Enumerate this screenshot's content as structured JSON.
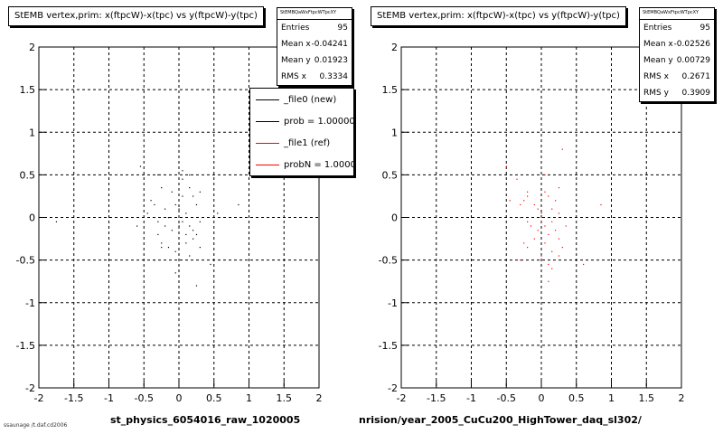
{
  "panels": [
    {
      "title": "StEMB  vertex,prim: x(ftpcW)-x(tpc) vs y(ftpcW)-y(tpc)",
      "stats": {
        "header": "StEMBQaWxFtpcWTpcXY",
        "rows": [
          {
            "label": "Entries",
            "value": "95"
          },
          {
            "label": "Mean x",
            "value": "-0.04241"
          },
          {
            "label": "Mean y",
            "value": "0.01923"
          },
          {
            "label": "RMS x",
            "value": "0.3334"
          }
        ]
      },
      "legend": [
        {
          "label": "_file0 (new)",
          "color": "#000000"
        },
        {
          "label": "prob = 1.000000",
          "color": "#000000"
        },
        {
          "label": "_file1 (ref)",
          "color": "#ff0000"
        },
        {
          "label": "probN = 1.000000",
          "color": "#ff0000"
        }
      ],
      "xlabel": "st_physics_6054016_raw_1020005"
    },
    {
      "title": "StEMB  vertex,prim: x(ftpcW)-x(tpc) vs y(ftpcW)-y(tpc)",
      "stats": {
        "header": "StEMBQaWxFtpcWTpcXY",
        "rows": [
          {
            "label": "Entries",
            "value": "95"
          },
          {
            "label": "Mean x",
            "value": "-0.02526"
          },
          {
            "label": "Mean y",
            "value": "0.00729"
          },
          {
            "label": "RMS x",
            "value": "0.2671"
          },
          {
            "label": "RMS y",
            "value": "0.3909"
          }
        ]
      },
      "xlabel": "nrision/year_2005_CuCu200_HighTower_daq_sl302/"
    }
  ],
  "footer_note": "ssaunage /t.daf.cd2006",
  "chart_data": [
    {
      "type": "scatter",
      "title": "StEMB  vertex,prim: x(ftpcW)-x(tpc) vs y(ftpcW)-y(tpc)",
      "xlabel": "st_physics_6054016_raw_1020005",
      "ylabel": "",
      "xlim": [
        -2,
        2
      ],
      "ylim": [
        -2,
        2
      ],
      "xticks": [
        "-2",
        "-1.5",
        "-1",
        "-0.5",
        "0",
        "0.5",
        "1",
        "1.5",
        "2"
      ],
      "yticks": [
        "2",
        "1.5",
        "1",
        "0.5",
        "0",
        "-0.5",
        "-1",
        "-1.5",
        "-2"
      ],
      "grid": true,
      "color": "#000000",
      "x": [
        -0.55,
        -0.3,
        -0.4,
        -0.35,
        -0.25,
        -0.2,
        -0.1,
        -0.05,
        0.0,
        0.05,
        0.1,
        0.15,
        0.2,
        0.25,
        0.3,
        -0.3,
        -0.2,
        -0.15,
        -0.1,
        0.0,
        0.05,
        0.1,
        0.15,
        0.2,
        -0.3,
        -0.25,
        0.1,
        0.2,
        0.3,
        0.25,
        -0.05,
        0.0,
        0.15,
        -0.25,
        0.3,
        0.05,
        0.15,
        0.55,
        0.85,
        -0.6,
        -1.75,
        -0.35,
        -0.05,
        0.25,
        0.45,
        0.05,
        -0.45,
        -0.15
      ],
      "y": [
        0.6,
        0.5,
        0.2,
        0.15,
        0.35,
        0.1,
        0.3,
        0.15,
        0.1,
        0.25,
        0.05,
        0.35,
        0.25,
        0.15,
        0.3,
        -0.05,
        -0.1,
        0.0,
        -0.15,
        -0.1,
        -0.05,
        -0.2,
        -0.1,
        -0.15,
        -0.2,
        -0.3,
        -0.3,
        -0.25,
        -0.35,
        -0.2,
        -0.4,
        -0.3,
        -0.45,
        -0.35,
        -0.05,
        0.45,
        0.5,
        0.05,
        0.15,
        -0.1,
        -0.05,
        -0.5,
        -0.65,
        -0.8,
        -0.55,
        0.55,
        0.05,
        -0.35
      ]
    },
    {
      "type": "scatter",
      "title": "StEMB  vertex,prim: x(ftpcW)-x(tpc) vs y(ftpcW)-y(tpc)",
      "xlabel": "nrision/year_2005_CuCu200_HighTower_daq_sl302/",
      "ylabel": "",
      "xlim": [
        -2,
        2
      ],
      "ylim": [
        -2,
        2
      ],
      "xticks": [
        "-2",
        "-1.5",
        "-1",
        "-0.5",
        "0",
        "0.5",
        "1",
        "1.5",
        "2"
      ],
      "yticks": [
        "2",
        "1.5",
        "1",
        "0.5",
        "0",
        "-0.5",
        "-1",
        "-1.5",
        "-2"
      ],
      "grid": true,
      "color": "#ff0000",
      "x": [
        -0.5,
        -0.35,
        -0.3,
        -0.25,
        -0.2,
        -0.1,
        -0.05,
        0.0,
        0.05,
        0.1,
        0.15,
        0.2,
        0.25,
        0.3,
        -0.3,
        -0.2,
        -0.15,
        -0.05,
        0.0,
        0.05,
        0.1,
        0.15,
        0.2,
        0.25,
        -0.25,
        -0.2,
        0.05,
        0.15,
        0.25,
        0.1,
        -0.1,
        0.0,
        0.1,
        0.3,
        0.6,
        0.85,
        -0.45,
        0.25,
        0.05,
        -0.3,
        0.15,
        -0.2,
        0.35
      ],
      "y": [
        0.6,
        0.45,
        0.15,
        0.2,
        0.3,
        0.15,
        0.1,
        0.05,
        0.3,
        0.25,
        0.1,
        0.2,
        0.05,
        0.8,
        0.0,
        -0.05,
        -0.1,
        -0.15,
        -0.05,
        -0.1,
        -0.2,
        -0.05,
        -0.15,
        -0.25,
        -0.3,
        -0.35,
        -0.3,
        -0.4,
        -0.45,
        -0.55,
        -0.25,
        -0.45,
        -0.75,
        -0.35,
        -0.55,
        0.15,
        0.2,
        0.35,
        0.5,
        -0.5,
        -0.6,
        0.25,
        -0.1
      ]
    }
  ]
}
